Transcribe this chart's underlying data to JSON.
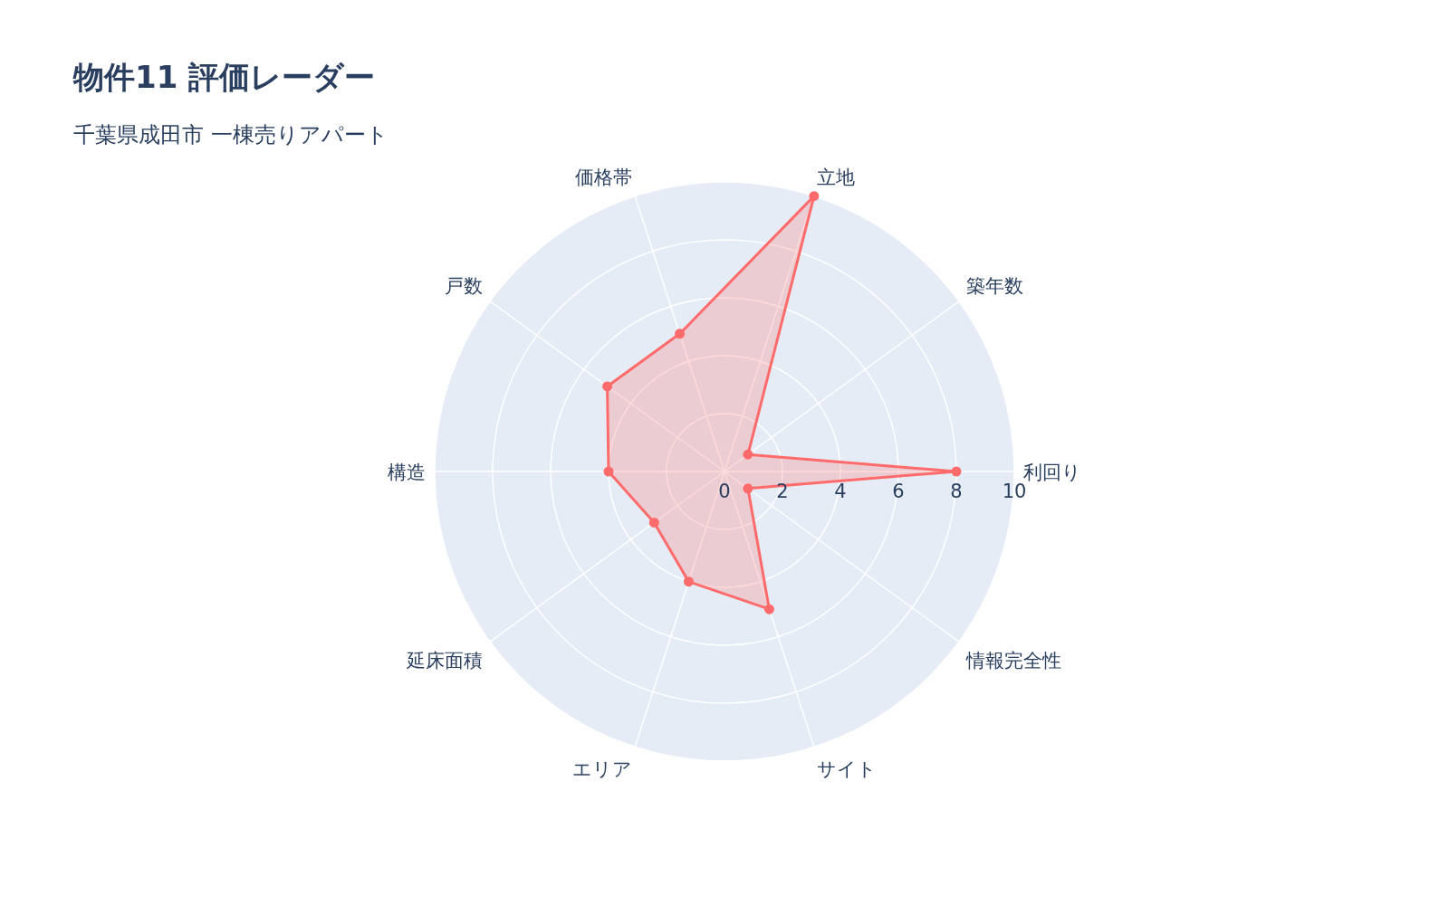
{
  "chart_data": {
    "type": "radar",
    "title": "物件11 評価レーダー",
    "subtitle": "千葉県成田市 一棟売りアパート",
    "categories": [
      "立地",
      "築年数",
      "利回り",
      "情報完全性",
      "サイト",
      "エリア",
      "延床面積",
      "構造",
      "戸数",
      "価格帯"
    ],
    "series": [
      {
        "color": "#ff6b6b",
        "values": [
          10,
          1,
          8,
          1,
          5,
          4,
          3,
          4,
          5,
          5
        ]
      }
    ],
    "ylim": [
      0,
      10
    ],
    "yticks": [
      0,
      2,
      4,
      6,
      8,
      10
    ],
    "grid": true,
    "marker": "circle",
    "line_style": "solid"
  }
}
